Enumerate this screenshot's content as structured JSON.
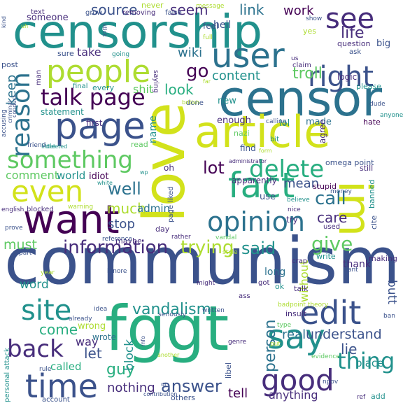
{
  "palette": {
    "purple": "#440154",
    "indigo": "#472d7b",
    "blue": "#3b528b",
    "slate": "#2c728e",
    "teal": "#21918c",
    "green": "#28ae80",
    "lime": "#5ec962",
    "olive": "#addc30",
    "yellow": "#d2e21b"
  },
  "words": [
    {
      "text": "communism",
      "color": "#3b528b"
    },
    {
      "text": "censorship",
      "color": "#21918c"
    },
    {
      "text": "censor",
      "color": "#2c728e"
    },
    {
      "text": "fggt",
      "color": "#28ae80"
    },
    {
      "text": "love",
      "color": "#d2e21b"
    },
    {
      "text": "article",
      "color": "#d2e21b"
    },
    {
      "text": "im",
      "color": "#d2e21b"
    },
    {
      "text": "people",
      "color": "#addc30"
    },
    {
      "text": "user",
      "color": "#2c728e"
    },
    {
      "text": "page",
      "color": "#3b528b"
    },
    {
      "text": "right",
      "color": "#3b528b"
    },
    {
      "text": "see",
      "color": "#472d7b"
    },
    {
      "text": "want",
      "color": "#440154"
    },
    {
      "text": "fact",
      "color": "#28ae80"
    },
    {
      "text": "even",
      "color": "#d2e21b"
    },
    {
      "text": "something",
      "color": "#5ec962"
    },
    {
      "text": "delete",
      "color": "#28ae80"
    },
    {
      "text": "opinion",
      "color": "#2c728e"
    },
    {
      "text": "say",
      "color": "#21918c"
    },
    {
      "text": "edit",
      "color": "#3b528b"
    },
    {
      "text": "time",
      "color": "#3b528b"
    },
    {
      "text": "good",
      "color": "#472d7b"
    },
    {
      "text": "back",
      "color": "#472d7b"
    },
    {
      "text": "site",
      "color": "#21918c"
    },
    {
      "text": "talk page",
      "color": "#440154"
    },
    {
      "text": "reason",
      "color": "#2c728e"
    },
    {
      "text": "information",
      "color": "#472d7b"
    },
    {
      "text": "trying",
      "color": "#addc30"
    },
    {
      "text": "vandalism",
      "color": "#21918c"
    },
    {
      "text": "answer",
      "color": "#3b528b"
    },
    {
      "text": "thing",
      "color": "#21918c"
    },
    {
      "text": "person",
      "color": "#2c728e"
    },
    {
      "text": "life",
      "color": "#472d7b"
    },
    {
      "text": "go",
      "color": "#440154"
    },
    {
      "text": "troll",
      "color": "#5ec962"
    },
    {
      "text": "call",
      "color": "#2c728e"
    },
    {
      "text": "give",
      "color": "#5ec962"
    },
    {
      "text": "lot",
      "color": "#440154"
    },
    {
      "text": "well",
      "color": "#2c728e"
    },
    {
      "text": "said",
      "color": "#21918c"
    },
    {
      "text": "source",
      "color": "#3b528b"
    },
    {
      "text": "seem",
      "color": "#472d7b"
    },
    {
      "text": "link",
      "color": "#2c728e"
    },
    {
      "text": "work",
      "color": "#440154"
    },
    {
      "text": "wiki",
      "color": "#2c728e"
    },
    {
      "text": "take",
      "color": "#472d7b"
    },
    {
      "text": "content",
      "color": "#21918c"
    },
    {
      "text": "look",
      "color": "#28ae80"
    },
    {
      "text": "keep",
      "color": "#2c728e"
    },
    {
      "text": "shit",
      "color": "#5ec962"
    },
    {
      "text": "comment",
      "color": "#5ec962"
    },
    {
      "text": "world",
      "color": "#21918c"
    },
    {
      "text": "idiot",
      "color": "#440154"
    },
    {
      "text": "much",
      "color": "#addc30"
    },
    {
      "text": "stop",
      "color": "#3b528b"
    },
    {
      "text": "admin",
      "color": "#2c728e"
    },
    {
      "text": "mean",
      "color": "#3b528b"
    },
    {
      "text": "care",
      "color": "#472d7b"
    },
    {
      "text": "use",
      "color": "#3b528b"
    },
    {
      "text": "must",
      "color": "#5ec962"
    },
    {
      "text": "word",
      "color": "#21918c"
    },
    {
      "text": "come",
      "color": "#28ae80"
    },
    {
      "text": "way",
      "color": "#472d7b"
    },
    {
      "text": "let",
      "color": "#3b528b"
    },
    {
      "text": "guy",
      "color": "#28ae80"
    },
    {
      "text": "block",
      "color": "#21918c"
    },
    {
      "text": "called",
      "color": "#28ae80"
    },
    {
      "text": "nothing",
      "color": "#472d7b"
    },
    {
      "text": "real",
      "color": "#2c728e"
    },
    {
      "text": "understand",
      "color": "#3b528b"
    },
    {
      "text": "lie",
      "color": "#3b528b"
    },
    {
      "text": "place",
      "color": "#21918c"
    },
    {
      "text": "tell",
      "color": "#440154"
    },
    {
      "text": "anything",
      "color": "#472d7b"
    },
    {
      "text": "without",
      "color": "#addc30"
    },
    {
      "text": "butt",
      "color": "#3b528b"
    },
    {
      "text": "long",
      "color": "#2c728e"
    },
    {
      "text": "thank",
      "color": "#472d7b"
    },
    {
      "text": "wrong",
      "color": "#addc30"
    },
    {
      "text": "wrote",
      "color": "#2c728e"
    },
    {
      "text": "hell",
      "color": "#3b528b"
    },
    {
      "text": "feel",
      "color": "#3b528b"
    },
    {
      "text": "name",
      "color": "#21918c"
    },
    {
      "text": "enough",
      "color": "#472d7b"
    },
    {
      "text": "find",
      "color": "#3b528b"
    },
    {
      "text": "lol",
      "color": "#21918c"
    },
    {
      "text": "made",
      "color": "#2c728e"
    },
    {
      "text": "agree",
      "color": "#472d7b"
    },
    {
      "text": "first",
      "color": "#472d7b"
    },
    {
      "text": "statement",
      "color": "#21918c"
    },
    {
      "text": "someone",
      "color": "#472d7b"
    },
    {
      "text": "new",
      "color": "#21918c"
    },
    {
      "text": "done",
      "color": "#3b528b"
    },
    {
      "text": "never",
      "color": "#addc30"
    },
    {
      "text": "logic",
      "color": "#472d7b"
    },
    {
      "text": "please",
      "color": "#21918c"
    },
    {
      "text": "question",
      "color": "#472d7b"
    },
    {
      "text": "big",
      "color": "#3b528b"
    },
    {
      "text": "ask",
      "color": "#3b528b"
    },
    {
      "text": "omega point",
      "color": "#3b528b"
    },
    {
      "text": "point theory",
      "color": "#addc30"
    },
    {
      "text": "apparently",
      "color": "#472d7b"
    },
    {
      "text": "stupid",
      "color": "#440154"
    },
    {
      "text": "money",
      "color": "#3b528b"
    },
    {
      "text": "still",
      "color": "#472d7b"
    },
    {
      "text": "banned",
      "color": "#21918c"
    },
    {
      "text": "cite",
      "color": "#3b528b"
    },
    {
      "text": "hate",
      "color": "#440154"
    },
    {
      "text": "post",
      "color": "#3b528b"
    },
    {
      "text": "text",
      "color": "#472d7b"
    },
    {
      "text": "grow",
      "color": "#3b528b"
    },
    {
      "text": "removing",
      "color": "#472d7b"
    },
    {
      "text": "false",
      "color": "#3b528b"
    },
    {
      "text": "message",
      "color": "#addc30"
    },
    {
      "text": "show",
      "color": "#3b528b"
    },
    {
      "text": "full",
      "color": "#addc30"
    },
    {
      "text": "yes",
      "color": "#addc30"
    },
    {
      "text": "claim",
      "color": "#472d7b"
    },
    {
      "text": "sure",
      "color": "#3b528b"
    },
    {
      "text": "going",
      "color": "#21918c"
    },
    {
      "text": "saying",
      "color": "#472d7b"
    },
    {
      "text": "every",
      "color": "#21918c"
    },
    {
      "text": "final",
      "color": "#21918c"
    },
    {
      "text": "dude",
      "color": "#3b528b"
    },
    {
      "text": "anyone",
      "color": "#21918c"
    },
    {
      "text": "calling",
      "color": "#3b528b"
    },
    {
      "text": "nazi",
      "color": "#5ec962"
    },
    {
      "text": "bit",
      "color": "#21918c"
    },
    {
      "text": "little",
      "color": "#21918c"
    },
    {
      "text": "deleted",
      "color": "#21918c"
    },
    {
      "text": "friend",
      "color": "#3b528b"
    },
    {
      "text": "read",
      "color": "#5ec962"
    },
    {
      "text": "oh",
      "color": "#472d7b"
    },
    {
      "text": "administrator",
      "color": "#472d7b"
    },
    {
      "text": "white",
      "color": "#21918c"
    },
    {
      "text": "wp",
      "color": "#21918c"
    },
    {
      "text": "try",
      "color": "#472d7b"
    },
    {
      "text": "blocked",
      "color": "#472d7b"
    },
    {
      "text": "english",
      "color": "#472d7b"
    },
    {
      "text": "warning",
      "color": "#addc30"
    },
    {
      "text": "maybe",
      "color": "#472d7b"
    },
    {
      "text": "day",
      "color": "#472d7b"
    },
    {
      "text": "page liked",
      "color": "#3b528b"
    },
    {
      "text": "rather",
      "color": "#472d7b"
    },
    {
      "text": "reference",
      "color": "#3b528b"
    },
    {
      "text": "prove",
      "color": "#3b528b"
    },
    {
      "text": "part",
      "color": "#3b528b"
    },
    {
      "text": "vandal",
      "color": "#5ec962"
    },
    {
      "text": "believe",
      "color": "#21918c"
    },
    {
      "text": "nice",
      "color": "#472d7b"
    },
    {
      "text": "used",
      "color": "#472d7b"
    },
    {
      "text": "write",
      "color": "#21918c"
    },
    {
      "text": "making",
      "color": "#472d7b"
    },
    {
      "text": "cant",
      "color": "#3b528b"
    },
    {
      "text": "style",
      "color": "#addc30"
    },
    {
      "text": "crap",
      "color": "#472d7b"
    },
    {
      "text": "year",
      "color": "#addc30"
    },
    {
      "text": "ignore",
      "color": "#3b528b"
    },
    {
      "text": "might",
      "color": "#472d7b"
    },
    {
      "text": "got",
      "color": "#472d7b"
    },
    {
      "text": "ok",
      "color": "#21918c"
    },
    {
      "text": "ass",
      "color": "#472d7b"
    },
    {
      "text": "talk",
      "color": "#472d7b"
    },
    {
      "text": "bad",
      "color": "#addc30"
    },
    {
      "text": "ban",
      "color": "#3b528b"
    },
    {
      "text": "insult",
      "color": "#472d7b"
    },
    {
      "text": "type",
      "color": "#5ec962"
    },
    {
      "text": "seriously",
      "color": "#3b528b"
    },
    {
      "text": "written",
      "color": "#3b528b"
    },
    {
      "text": "already",
      "color": "#3b528b"
    },
    {
      "text": "idea",
      "color": "#3b528b"
    },
    {
      "text": "personal attack",
      "color": "#21918c"
    },
    {
      "text": "rule",
      "color": "#3b528b"
    },
    {
      "text": "info",
      "color": "#3b528b"
    },
    {
      "text": "genre",
      "color": "#472d7b"
    },
    {
      "text": "put",
      "color": "#addc30"
    },
    {
      "text": "evidence",
      "color": "#5ec962"
    },
    {
      "text": "another",
      "color": "#addc30"
    },
    {
      "text": "libel",
      "color": "#3b528b"
    },
    {
      "text": "npov",
      "color": "#3b528b"
    },
    {
      "text": "account",
      "color": "#3b528b"
    },
    {
      "text": "others",
      "color": "#3b528b"
    },
    {
      "text": "contribution",
      "color": "#3b528b"
    },
    {
      "text": "ref",
      "color": "#472d7b"
    },
    {
      "text": "add",
      "color": "#21918c"
    },
    {
      "text": "accusing",
      "color": "#3b528b"
    },
    {
      "text": "criminal",
      "color": "#3b528b"
    },
    {
      "text": "conduct",
      "color": "#3b528b"
    },
    {
      "text": "british",
      "color": "#addc30"
    },
    {
      "text": "far",
      "color": "#addc30"
    },
    {
      "text": "stick",
      "color": "#3b528b"
    },
    {
      "text": "us",
      "color": "#472d7b"
    },
    {
      "text": "man",
      "color": "#472d7b"
    },
    {
      "text": "ur",
      "color": "#3b528b"
    },
    {
      "text": "kind",
      "color": "#3b528b"
    },
    {
      "text": "uh",
      "color": "#addc30"
    },
    {
      "text": "form",
      "color": "#addc30"
    }
  ]
}
